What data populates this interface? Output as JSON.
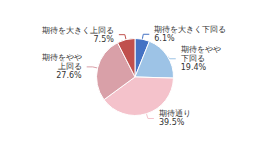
{
  "chart_data": {
    "type": "pie",
    "categories": [
      "期待を大きく下回る",
      "期待をやや\n下回る",
      "期待通り",
      "期待をやや\n上回る",
      "期待を大きく上回る"
    ],
    "values": [
      6.1,
      19.4,
      39.5,
      27.6,
      7.5
    ],
    "value_labels": [
      "6.1%",
      "19.4%",
      "39.5%",
      "27.6%",
      "7.5%"
    ],
    "colors": [
      "#4472c4",
      "#9dc3e6",
      "#f4c2cb",
      "#d9a0a8",
      "#c0504d"
    ],
    "data_labels": true,
    "legend": false
  }
}
